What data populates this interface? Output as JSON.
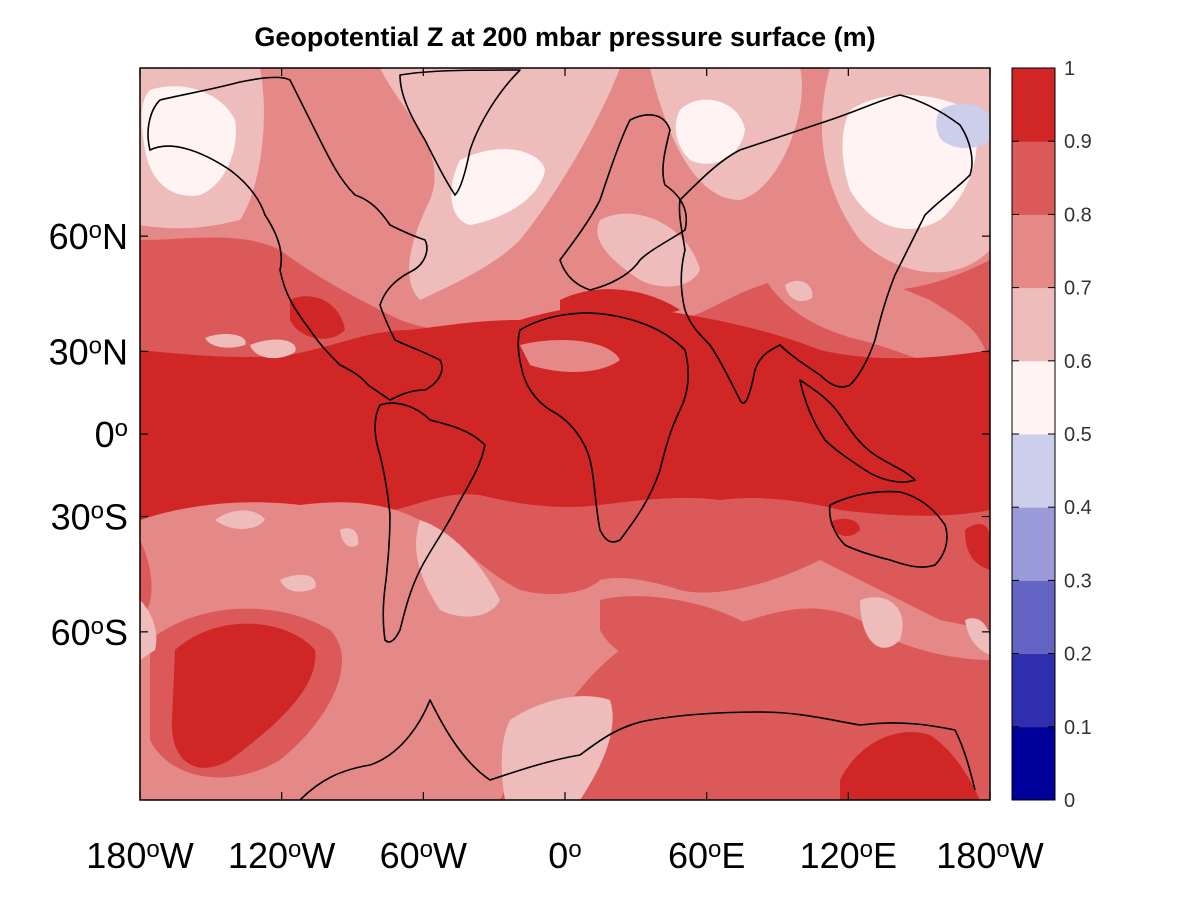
{
  "title": "Geopotential Z at 200 mbar pressure surface (m)",
  "map": {
    "projection": "mercator",
    "lon_range": [
      -180,
      180
    ],
    "lat_range": [
      -80,
      80
    ],
    "x_ticks": [
      {
        "lon": -180,
        "num": "180",
        "dir": "W"
      },
      {
        "lon": -120,
        "num": "120",
        "dir": "W"
      },
      {
        "lon": -60,
        "num": "60",
        "dir": "W"
      },
      {
        "lon": 0,
        "num": "0",
        "dir": ""
      },
      {
        "lon": 60,
        "num": "60",
        "dir": "E"
      },
      {
        "lon": 120,
        "num": "120",
        "dir": "E"
      },
      {
        "lon": 180,
        "num": "180",
        "dir": "W"
      }
    ],
    "y_ticks": [
      {
        "lat": 60,
        "num": "60",
        "dir": "N"
      },
      {
        "lat": 30,
        "num": "30",
        "dir": "N"
      },
      {
        "lat": 0,
        "num": "0",
        "dir": ""
      },
      {
        "lat": -30,
        "num": "30",
        "dir": "S"
      },
      {
        "lat": -60,
        "num": "60",
        "dir": "S"
      }
    ],
    "degree_symbol": "o"
  },
  "colorbar": {
    "min": 0,
    "max": 1,
    "tick_labels": [
      "0",
      "0.1",
      "0.2",
      "0.3",
      "0.4",
      "0.5",
      "0.6",
      "0.7",
      "0.8",
      "0.9",
      "1"
    ],
    "colors": [
      "#00009b",
      "#2e2eae",
      "#6464c4",
      "#9a9ad8",
      "#cdcdec",
      "#fff3f3",
      "#efbcbc",
      "#e58888",
      "#db5959",
      "#d12626"
    ]
  }
}
